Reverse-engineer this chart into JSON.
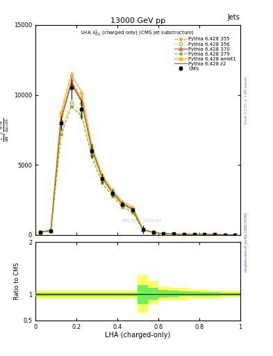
{
  "title": "13000 GeV pp",
  "title_right": "Jets",
  "plot_label": "LHA $\\lambda^{1}_{0.5}$ (charged only) (CMS jet substructure)",
  "ylabel_main": "1 / mathrm{d}N / mathrm{d}^{2}N / mathrm{d}p_{T} mathrm{d}lambda",
  "ylabel_ratio": "Ratio to CMS",
  "xlabel": "LHA (charged-only)",
  "rivet_label": "Rivet 3.1.10; ≥ 2.8M events",
  "mcplots_label": "mcplots.cern.ch [arXiv:1306.3436]",
  "x_edges": [
    0.0,
    0.05,
    0.1,
    0.15,
    0.2,
    0.25,
    0.3,
    0.35,
    0.4,
    0.45,
    0.5,
    0.55,
    0.6,
    0.65,
    0.7,
    0.75,
    0.8,
    0.85,
    0.9,
    0.95,
    1.0
  ],
  "cms_y": [
    200,
    300,
    8000,
    10500,
    9000,
    6000,
    4000,
    3000,
    2200,
    1800,
    400,
    200,
    100,
    80,
    60,
    50,
    40,
    30,
    20,
    15
  ],
  "cms_yerr": [
    50,
    100,
    500,
    800,
    700,
    500,
    350,
    250,
    180,
    150,
    300,
    50,
    30,
    25,
    20,
    18,
    15,
    12,
    10,
    8
  ],
  "py355_y": [
    220,
    320,
    8500,
    11000,
    9800,
    6200,
    4200,
    3100,
    2300,
    1900,
    380,
    180,
    90,
    70,
    55,
    45,
    35,
    28,
    18,
    13
  ],
  "py356_y": [
    190,
    280,
    7500,
    9500,
    8800,
    5800,
    3900,
    2900,
    2100,
    1700,
    370,
    180,
    90,
    70,
    55,
    45,
    35,
    28,
    18,
    13
  ],
  "py370_y": [
    210,
    310,
    8200,
    10800,
    9500,
    6100,
    4100,
    3000,
    2200,
    1800,
    375,
    180,
    90,
    70,
    55,
    45,
    35,
    28,
    18,
    13
  ],
  "py379_y": [
    180,
    270,
    7200,
    9200,
    8500,
    5600,
    3700,
    2800,
    2000,
    1600,
    360,
    175,
    88,
    68,
    52,
    42,
    33,
    26,
    16,
    12
  ],
  "py_ambt1_y": [
    230,
    330,
    8800,
    11500,
    10200,
    6400,
    4300,
    3200,
    2400,
    2000,
    390,
    185,
    92,
    72,
    56,
    46,
    36,
    29,
    19,
    14
  ],
  "py_z2_y": [
    215,
    315,
    8300,
    10900,
    9600,
    6150,
    4150,
    3050,
    2250,
    1850,
    382,
    182,
    91,
    71,
    55,
    45,
    35,
    28,
    18,
    13
  ],
  "ratio_yellow_lo": [
    0.92,
    0.92,
    0.92,
    0.92,
    0.92,
    0.92,
    0.92,
    0.92,
    0.92,
    0.92,
    0.65,
    0.8,
    0.88,
    0.9,
    0.9,
    0.92,
    0.93,
    0.93,
    0.95,
    0.95
  ],
  "ratio_yellow_hi": [
    1.08,
    1.08,
    1.08,
    1.08,
    1.08,
    1.08,
    1.08,
    1.08,
    1.08,
    1.08,
    1.38,
    1.25,
    1.15,
    1.12,
    1.12,
    1.1,
    1.09,
    1.08,
    1.07,
    1.07
  ],
  "ratio_green_lo": [
    0.97,
    0.97,
    0.97,
    0.97,
    0.97,
    0.97,
    0.97,
    0.97,
    0.97,
    0.97,
    0.82,
    0.9,
    0.94,
    0.95,
    0.96,
    0.97,
    0.97,
    0.97,
    0.98,
    0.98
  ],
  "ratio_green_hi": [
    1.03,
    1.03,
    1.03,
    1.03,
    1.03,
    1.03,
    1.03,
    1.03,
    1.03,
    1.03,
    1.18,
    1.12,
    1.08,
    1.07,
    1.06,
    1.05,
    1.04,
    1.04,
    1.03,
    1.03
  ],
  "color_355": "#FF9944",
  "color_356": "#AACC44",
  "color_370": "#CC5566",
  "color_379": "#77BB22",
  "color_ambt1": "#FFAA22",
  "color_z2": "#997700",
  "xlim": [
    0.0,
    1.0
  ],
  "ylim_main": [
    0,
    15000
  ],
  "ylim_ratio": [
    0.5,
    2.0
  ],
  "yticks_main": [
    0,
    5000,
    10000,
    15000
  ],
  "ytick_labels_main": [
    "0",
    "5000",
    "10000",
    "15000"
  ],
  "yticks_ratio": [
    0.5,
    1.0,
    2.0
  ],
  "ytick_labels_ratio": [
    "0.5",
    "1",
    "2"
  ]
}
